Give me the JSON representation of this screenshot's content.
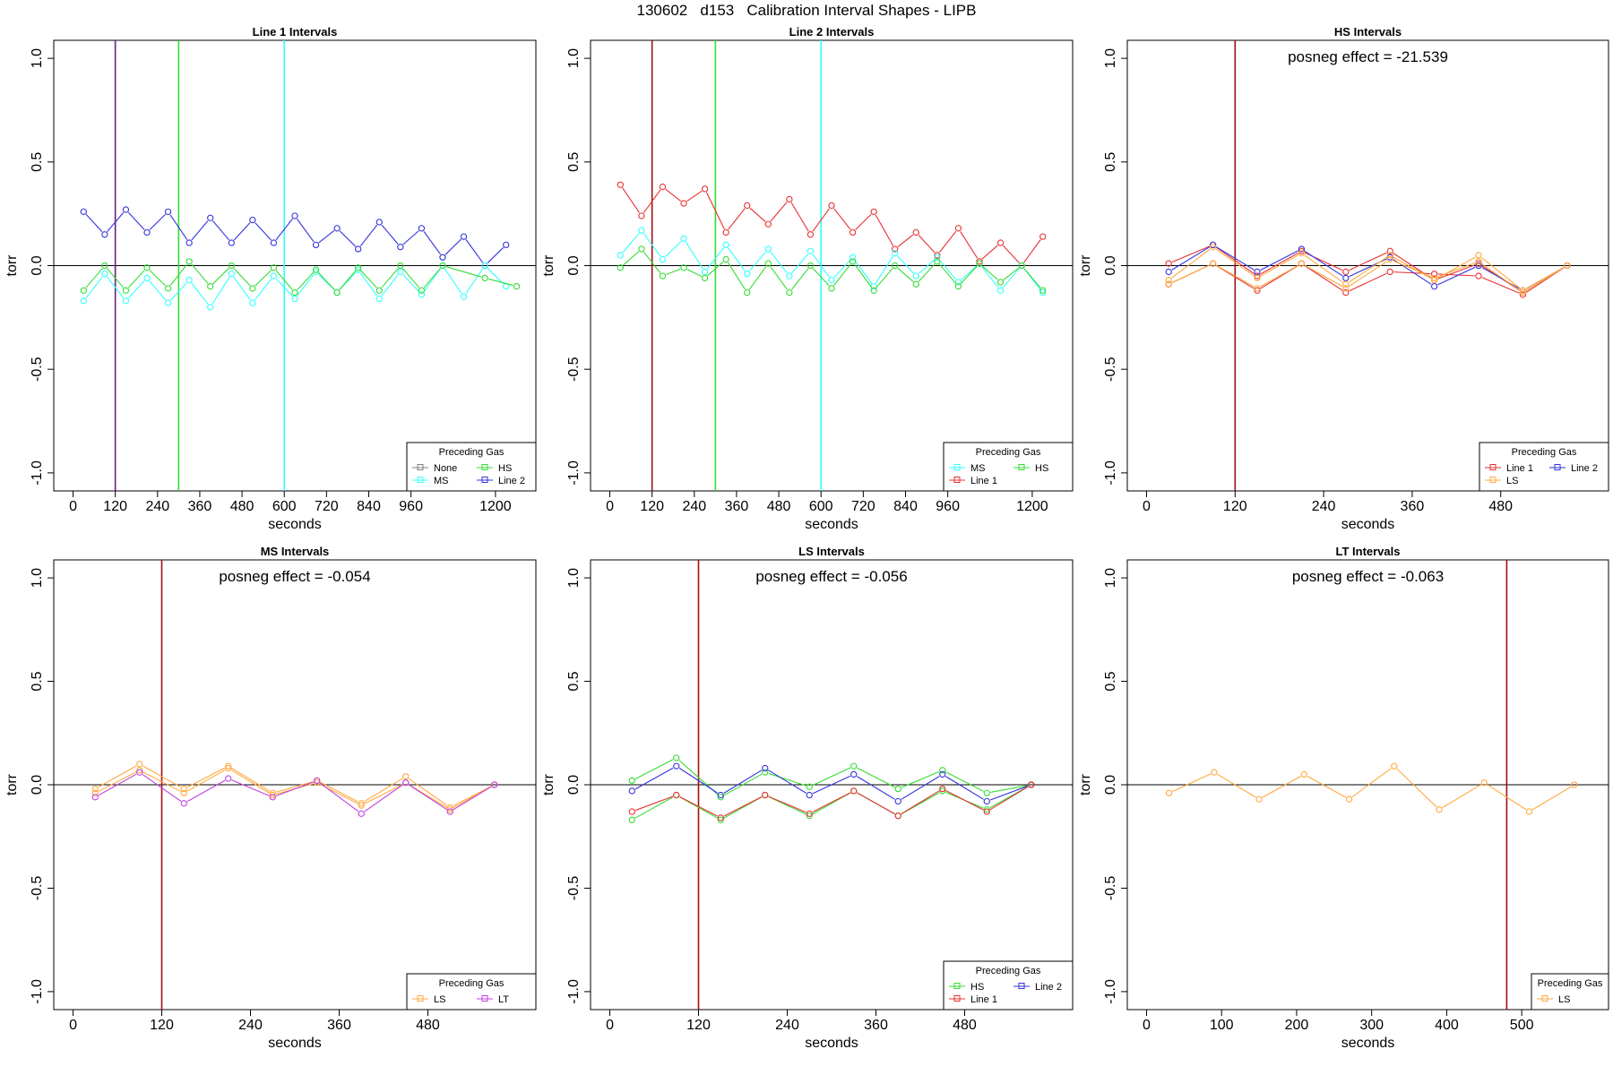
{
  "page_title": "130602   d153   Calibration Interval Shapes - LIPB",
  "colors": {
    "none": "#808080",
    "ms": "#33ffff",
    "hs": "#33dd33",
    "line2": "#3333dd",
    "line1": "#e83030",
    "ls": "#ffa940",
    "lt": "#c040e0",
    "vline_line1": "#a01010",
    "vline_line2": "#6a2080",
    "axis": "#000000"
  },
  "chart_data": [
    {
      "type": "line",
      "title": "Line 1 Intervals",
      "xlabel": "seconds",
      "ylabel": "torr",
      "xlim": [
        0,
        1260
      ],
      "ylim": [
        -1.0,
        1.0
      ],
      "xticks": [
        0,
        120,
        240,
        360,
        480,
        600,
        720,
        840,
        960,
        1200
      ],
      "yticks": [
        -1.0,
        -0.5,
        0.0,
        0.5,
        1.0
      ],
      "vlines": [
        {
          "x": 120,
          "color_key": "vline_line2"
        },
        {
          "x": 300,
          "color_key": "hs"
        },
        {
          "x": 600,
          "color_key": "ms"
        }
      ],
      "annotation": "",
      "legend": {
        "title": "Preceding Gas",
        "placement": "bottom-right",
        "columns": 2,
        "entries": [
          {
            "label": "None",
            "color_key": "none"
          },
          {
            "label": "HS",
            "color_key": "hs"
          },
          {
            "label": "MS",
            "color_key": "ms"
          },
          {
            "label": "Line 2",
            "color_key": "line2"
          }
        ]
      },
      "series": [
        {
          "name": "Line 2",
          "color_key": "line2",
          "x": [
            30,
            90,
            150,
            210,
            270,
            330,
            390,
            450,
            510,
            570,
            630,
            690,
            750,
            810,
            870,
            930,
            990,
            1050,
            1110,
            1170,
            1230
          ],
          "y": [
            0.26,
            0.15,
            0.27,
            0.16,
            0.26,
            0.11,
            0.23,
            0.11,
            0.22,
            0.11,
            0.24,
            0.1,
            0.18,
            0.08,
            0.21,
            0.09,
            0.18,
            0.04,
            0.14,
            0.0,
            0.1
          ]
        },
        {
          "name": "MS",
          "color_key": "ms",
          "x": [
            30,
            90,
            150,
            210,
            270,
            330,
            390,
            450,
            510,
            570,
            630,
            690,
            750,
            810,
            870,
            930,
            990,
            1050,
            1110,
            1170,
            1230
          ],
          "y": [
            -0.17,
            -0.04,
            -0.17,
            -0.06,
            -0.18,
            -0.07,
            -0.2,
            -0.04,
            -0.18,
            -0.05,
            -0.16,
            -0.03,
            -0.13,
            -0.02,
            -0.16,
            -0.03,
            -0.14,
            0.0,
            -0.15,
            0.0,
            -0.1
          ]
        },
        {
          "name": "HS",
          "color_key": "hs",
          "x": [
            30,
            90,
            150,
            210,
            270,
            330,
            390,
            450,
            510,
            570,
            630,
            690,
            750,
            810,
            870,
            930,
            990,
            1050,
            1170,
            1260
          ],
          "y": [
            -0.12,
            0.0,
            -0.12,
            -0.01,
            -0.11,
            0.02,
            -0.1,
            0.0,
            -0.11,
            -0.01,
            -0.13,
            -0.02,
            -0.13,
            -0.01,
            -0.12,
            0.0,
            -0.12,
            0.0,
            -0.06,
            -0.1
          ]
        }
      ]
    },
    {
      "type": "line",
      "title": "Line 2 Intervals",
      "xlabel": "seconds",
      "ylabel": "torr",
      "xlim": [
        0,
        1260
      ],
      "ylim": [
        -1.0,
        1.0
      ],
      "xticks": [
        0,
        120,
        240,
        360,
        480,
        600,
        720,
        840,
        960,
        1200
      ],
      "yticks": [
        -1.0,
        -0.5,
        0.0,
        0.5,
        1.0
      ],
      "vlines": [
        {
          "x": 120,
          "color_key": "vline_line1"
        },
        {
          "x": 300,
          "color_key": "hs"
        },
        {
          "x": 600,
          "color_key": "ms"
        }
      ],
      "annotation": "",
      "legend": {
        "title": "Preceding Gas",
        "placement": "bottom-right",
        "columns": 2,
        "entries": [
          {
            "label": "MS",
            "color_key": "ms"
          },
          {
            "label": "HS",
            "color_key": "hs"
          },
          {
            "label": "Line 1",
            "color_key": "line1"
          }
        ]
      },
      "series": [
        {
          "name": "Line 1",
          "color_key": "line1",
          "x": [
            30,
            90,
            150,
            210,
            270,
            330,
            390,
            450,
            510,
            570,
            630,
            690,
            750,
            810,
            870,
            930,
            990,
            1050,
            1110,
            1170,
            1230
          ],
          "y": [
            0.39,
            0.24,
            0.38,
            0.3,
            0.37,
            0.16,
            0.29,
            0.2,
            0.32,
            0.15,
            0.29,
            0.16,
            0.26,
            0.08,
            0.16,
            0.05,
            0.18,
            0.02,
            0.11,
            0.0,
            0.14
          ]
        },
        {
          "name": "MS",
          "color_key": "ms",
          "x": [
            30,
            90,
            150,
            210,
            270,
            330,
            390,
            450,
            510,
            570,
            630,
            690,
            750,
            810,
            870,
            930,
            990,
            1050,
            1110,
            1170,
            1230
          ],
          "y": [
            0.05,
            0.17,
            0.03,
            0.13,
            -0.03,
            0.1,
            -0.04,
            0.08,
            -0.05,
            0.07,
            -0.07,
            0.04,
            -0.1,
            0.06,
            -0.05,
            0.04,
            -0.08,
            0.01,
            -0.12,
            0.0,
            -0.13
          ]
        },
        {
          "name": "HS",
          "color_key": "hs",
          "x": [
            30,
            90,
            150,
            210,
            270,
            330,
            390,
            450,
            510,
            570,
            630,
            690,
            750,
            810,
            870,
            930,
            990,
            1050,
            1110,
            1170,
            1230
          ],
          "y": [
            -0.01,
            0.08,
            -0.05,
            -0.01,
            -0.06,
            0.03,
            -0.13,
            0.01,
            -0.13,
            0.0,
            -0.11,
            0.02,
            -0.12,
            0.0,
            -0.09,
            0.02,
            -0.1,
            0.01,
            -0.08,
            0.0,
            -0.12
          ]
        }
      ]
    },
    {
      "type": "line",
      "title": "HS Intervals",
      "xlabel": "seconds",
      "ylabel": "torr",
      "xlim": [
        0,
        600
      ],
      "ylim": [
        -1.0,
        1.0
      ],
      "xticks": [
        0,
        120,
        240,
        360,
        480
      ],
      "yticks": [
        -1.0,
        -0.5,
        0.0,
        0.5,
        1.0
      ],
      "vlines": [
        {
          "x": 120,
          "color_key": "vline_line1"
        }
      ],
      "annotation": "posneg effect = -21.539",
      "legend": {
        "title": "Preceding Gas",
        "placement": "bottom-right",
        "columns": 2,
        "entries": [
          {
            "label": "Line 1",
            "color_key": "line1"
          },
          {
            "label": "Line 2",
            "color_key": "line2"
          },
          {
            "label": "LS",
            "color_key": "ls"
          }
        ]
      },
      "series": [
        {
          "name": "Line 1",
          "color_key": "line1",
          "x": [
            30,
            90,
            150,
            210,
            270,
            330,
            390,
            450,
            510,
            570
          ],
          "y": [
            0.01,
            0.1,
            -0.05,
            0.07,
            -0.03,
            0.07,
            -0.07,
            0.01,
            -0.13,
            0.0
          ]
        },
        {
          "name": "Line 1",
          "color_key": "line1",
          "x": [
            30,
            90,
            150,
            210,
            270,
            330,
            390,
            450,
            510,
            570
          ],
          "y": [
            -0.09,
            0.01,
            -0.12,
            0.01,
            -0.13,
            -0.03,
            -0.04,
            -0.05,
            -0.14,
            0.0
          ]
        },
        {
          "name": "Line 2",
          "color_key": "line2",
          "x": [
            30,
            90,
            150,
            210,
            270,
            330,
            390,
            450,
            510,
            570
          ],
          "y": [
            -0.03,
            0.1,
            -0.03,
            0.08,
            -0.06,
            0.04,
            -0.1,
            0.0,
            -0.12,
            0.0
          ]
        },
        {
          "name": "LS",
          "color_key": "ls",
          "x": [
            30,
            90,
            150,
            210,
            270,
            330,
            390,
            450,
            510,
            570
          ],
          "y": [
            -0.07,
            0.09,
            -0.06,
            0.06,
            -0.09,
            0.05,
            -0.07,
            0.05,
            -0.12,
            0.0
          ]
        },
        {
          "name": "LS",
          "color_key": "ls",
          "x": [
            30,
            90,
            150,
            210,
            270,
            330,
            390,
            450,
            510,
            570
          ],
          "y": [
            -0.09,
            0.01,
            -0.11,
            0.01,
            -0.11,
            0.03,
            -0.06,
            0.02,
            -0.13,
            0.0
          ]
        }
      ]
    },
    {
      "type": "line",
      "title": "MS Intervals",
      "xlabel": "seconds",
      "ylabel": "torr",
      "xlim": [
        0,
        600
      ],
      "ylim": [
        -1.0,
        1.0
      ],
      "xticks": [
        0,
        120,
        240,
        360,
        480
      ],
      "yticks": [
        -1.0,
        -0.5,
        0.0,
        0.5,
        1.0
      ],
      "vlines": [
        {
          "x": 120,
          "color_key": "vline_line1"
        }
      ],
      "annotation": "posneg effect = -0.054",
      "legend": {
        "title": "Preceding Gas",
        "placement": "bottom-right",
        "columns": 2,
        "entries": [
          {
            "label": "LS",
            "color_key": "ls"
          },
          {
            "label": "LT",
            "color_key": "lt"
          }
        ]
      },
      "series": [
        {
          "name": "LS",
          "color_key": "ls",
          "x": [
            30,
            90,
            150,
            210,
            270,
            330,
            390,
            450,
            510,
            570
          ],
          "y": [
            -0.02,
            0.1,
            -0.02,
            0.09,
            -0.04,
            0.02,
            -0.09,
            0.04,
            -0.11,
            0.0
          ]
        },
        {
          "name": "LS",
          "color_key": "ls",
          "x": [
            30,
            90,
            150,
            210,
            270,
            330,
            390,
            450,
            510,
            570
          ],
          "y": [
            -0.04,
            0.07,
            -0.04,
            0.08,
            -0.05,
            0.01,
            -0.1,
            0.01,
            -0.12,
            0.0
          ]
        },
        {
          "name": "LT",
          "color_key": "lt",
          "x": [
            30,
            90,
            150,
            210,
            270,
            330,
            390,
            450,
            510,
            570
          ],
          "y": [
            -0.06,
            0.06,
            -0.09,
            0.03,
            -0.06,
            0.02,
            -0.14,
            0.01,
            -0.13,
            0.0
          ]
        }
      ]
    },
    {
      "type": "line",
      "title": "LS Intervals",
      "xlabel": "seconds",
      "ylabel": "torr",
      "xlim": [
        0,
        600
      ],
      "ylim": [
        -1.0,
        1.0
      ],
      "xticks": [
        0,
        120,
        240,
        360,
        480
      ],
      "yticks": [
        -1.0,
        -0.5,
        0.0,
        0.5,
        1.0
      ],
      "vlines": [
        {
          "x": 120,
          "color_key": "vline_line1"
        }
      ],
      "annotation": "posneg effect = -0.056",
      "legend": {
        "title": "Preceding Gas",
        "placement": "bottom-right",
        "columns": 2,
        "entries": [
          {
            "label": "HS",
            "color_key": "hs"
          },
          {
            "label": "Line 2",
            "color_key": "line2"
          },
          {
            "label": "Line 1",
            "color_key": "line1"
          }
        ]
      },
      "series": [
        {
          "name": "HS",
          "color_key": "hs",
          "x": [
            30,
            90,
            150,
            210,
            270,
            330,
            390,
            450,
            510,
            570
          ],
          "y": [
            0.02,
            0.13,
            -0.06,
            0.06,
            -0.01,
            0.09,
            -0.02,
            0.07,
            -0.04,
            0.0
          ]
        },
        {
          "name": "HS",
          "color_key": "hs",
          "x": [
            30,
            90,
            150,
            210,
            270,
            330,
            390,
            450,
            510,
            570
          ],
          "y": [
            -0.17,
            -0.05,
            -0.17,
            -0.05,
            -0.15,
            -0.03,
            -0.15,
            -0.03,
            -0.12,
            0.0
          ]
        },
        {
          "name": "Line 2",
          "color_key": "line2",
          "x": [
            30,
            90,
            150,
            210,
            270,
            330,
            390,
            450,
            510,
            570
          ],
          "y": [
            -0.03,
            0.09,
            -0.05,
            0.08,
            -0.05,
            0.05,
            -0.08,
            0.05,
            -0.08,
            0.0
          ]
        },
        {
          "name": "Line 1",
          "color_key": "line1",
          "x": [
            30,
            90,
            150,
            210,
            270,
            330,
            390,
            450,
            510,
            570
          ],
          "y": [
            -0.13,
            -0.05,
            -0.16,
            -0.05,
            -0.14,
            -0.03,
            -0.15,
            -0.02,
            -0.13,
            0.0
          ]
        }
      ]
    },
    {
      "type": "line",
      "title": "LT Intervals",
      "xlabel": "seconds",
      "ylabel": "torr",
      "xlim": [
        0,
        590
      ],
      "ylim": [
        -1.0,
        1.0
      ],
      "xticks": [
        0,
        100,
        200,
        300,
        400,
        500
      ],
      "yticks": [
        -1.0,
        -0.5,
        0.0,
        0.5,
        1.0
      ],
      "vlines": [
        {
          "x": 480,
          "color_key": "vline_line1"
        }
      ],
      "annotation": "posneg effect = -0.063",
      "legend": {
        "title": "Preceding Gas",
        "placement": "bottom-right",
        "columns": 1,
        "entries": [
          {
            "label": "LS",
            "color_key": "ls"
          }
        ]
      },
      "series": [
        {
          "name": "LS",
          "color_key": "ls",
          "x": [
            30,
            90,
            150,
            210,
            270,
            330,
            390,
            450,
            510,
            570
          ],
          "y": [
            -0.04,
            0.06,
            -0.07,
            0.05,
            -0.07,
            0.09,
            -0.12,
            0.01,
            -0.13,
            0.0
          ]
        }
      ]
    }
  ]
}
